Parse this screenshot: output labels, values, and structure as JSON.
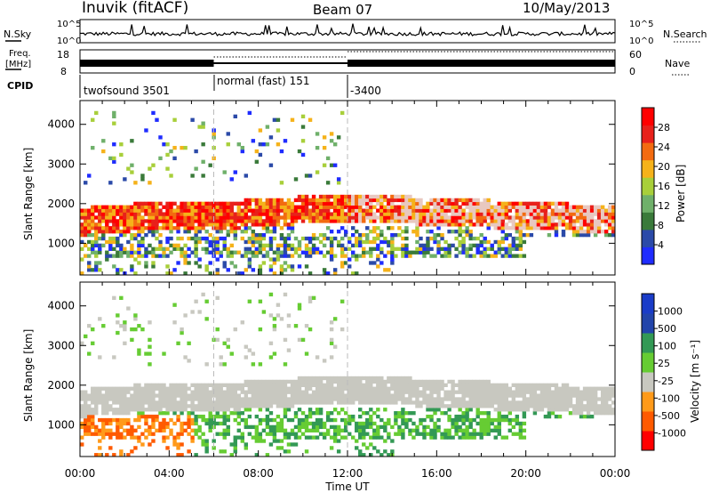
{
  "header": {
    "station": "Inuvik (fitACF)",
    "beam": "Beam 07",
    "date": "10/May/2013"
  },
  "top_panel": {
    "nsky_label": "N.Sky",
    "nsearch_label": "N.Search",
    "nsky_ticks": [
      "10^5",
      "10^0"
    ],
    "nsearch_ticks": [
      "10^5",
      "10^0"
    ],
    "freq_label_1": "Freq.",
    "freq_label_2": "[MHz]",
    "freq_ticks": [
      "18",
      "8"
    ],
    "nave_label": "Nave",
    "nave_ticks": [
      "60",
      "0"
    ],
    "cpid_label": "CPID",
    "cpid_segments": [
      {
        "label": "twofsound 3501",
        "start_hour": 0,
        "end_hour": 6
      },
      {
        "label": "normal (fast) 151",
        "start_hour": 6,
        "end_hour": 12
      },
      {
        "label": "-3400",
        "start_hour": 12,
        "end_hour": 24
      }
    ]
  },
  "colors": {
    "power_scale": [
      "#1f2cff",
      "#2b4aa8",
      "#3a7a3a",
      "#6fb06a",
      "#a8cf3a",
      "#f5b21a",
      "#f36b10",
      "#e8211b",
      "#ff0000"
    ],
    "velocity_scale": [
      "#ff0000",
      "#ff5a00",
      "#ff9a1a",
      "#c8c8c0",
      "#66cc33",
      "#339955",
      "#2244aa",
      "#1a3cc8"
    ],
    "ground_scatter": "#c8c8c0"
  },
  "chart_data": [
    {
      "type": "heatmap",
      "ylabel": "Slant Range [km]",
      "xlabel": "Time UT",
      "x_ticks": [
        "00:00",
        "04:00",
        "08:00",
        "12:00",
        "16:00",
        "20:00",
        "00:00"
      ],
      "x_range_hours": [
        0,
        24
      ],
      "y_ticks": [
        1000,
        2000,
        3000,
        4000
      ],
      "ylim": [
        200,
        4600
      ],
      "colorbar": {
        "label": "Power [dB]",
        "ticks": [
          4,
          8,
          12,
          16,
          20,
          24,
          28
        ]
      },
      "vertical_markers_hours": [
        6,
        12
      ]
    },
    {
      "type": "heatmap",
      "ylabel": "Slant Range [km]",
      "xlabel": "Time UT",
      "x_ticks": [
        "00:00",
        "04:00",
        "08:00",
        "12:00",
        "16:00",
        "20:00",
        "00:00"
      ],
      "x_range_hours": [
        0,
        24
      ],
      "y_ticks": [
        1000,
        2000,
        3000,
        4000
      ],
      "ylim": [
        200,
        4600
      ],
      "colorbar": {
        "label": "Velocity [m s⁻¹]",
        "ticks": [
          1000,
          500,
          100,
          25,
          -25,
          -100,
          -500,
          -1000
        ]
      },
      "vertical_markers_hours": [
        6,
        12
      ]
    }
  ]
}
